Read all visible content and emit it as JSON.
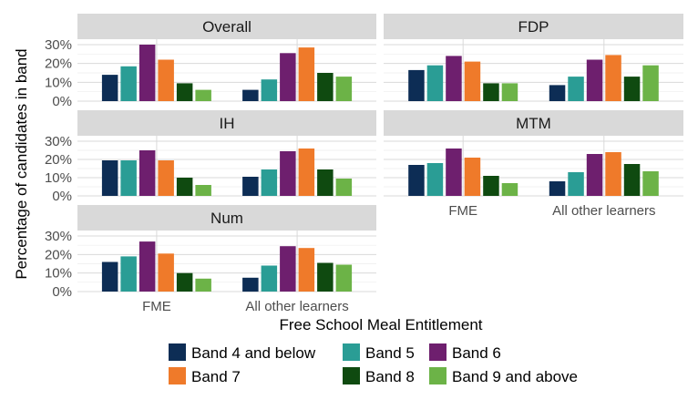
{
  "chart_data": {
    "type": "bar",
    "xlabel": "Free School Meal Entitlement",
    "ylabel": "Percentage of candidates in band",
    "categories": [
      "FME",
      "All other learners"
    ],
    "ylim": [
      0,
      30
    ],
    "yticks": [
      "0%",
      "10%",
      "20%",
      "30%"
    ],
    "grid": true,
    "legend_position": "bottom",
    "series": [
      {
        "name": "Band 4 and below",
        "color": "#0d2d55"
      },
      {
        "name": "Band 5",
        "color": "#2a9d95"
      },
      {
        "name": "Band 6",
        "color": "#6e1f6e"
      },
      {
        "name": "Band 7",
        "color": "#ef7a2a"
      },
      {
        "name": "Band 8",
        "color": "#0f4a10"
      },
      {
        "name": "Band 9 and above",
        "color": "#6cb347"
      }
    ],
    "panels": [
      {
        "title": "Overall",
        "values": {
          "FME": [
            14,
            18.5,
            30,
            22,
            9.5,
            6
          ],
          "All other learners": [
            6,
            11.5,
            25.5,
            28.5,
            15,
            13
          ]
        }
      },
      {
        "title": "FDP",
        "values": {
          "FME": [
            16.5,
            19,
            24,
            21,
            9.5,
            9.5
          ],
          "All other learners": [
            8.5,
            13,
            22,
            24.5,
            13,
            19
          ]
        }
      },
      {
        "title": "IH",
        "values": {
          "FME": [
            19.5,
            19.5,
            25,
            19.5,
            10,
            6
          ],
          "All other learners": [
            10.5,
            14.5,
            24.5,
            26,
            14.5,
            9.5
          ]
        }
      },
      {
        "title": "MTM",
        "values": {
          "FME": [
            17,
            18,
            26,
            21,
            11,
            7
          ],
          "All other learners": [
            8,
            13,
            23,
            24,
            17.5,
            13.5
          ]
        }
      },
      {
        "title": "Num",
        "values": {
          "FME": [
            16,
            19,
            27,
            20.5,
            10,
            7
          ],
          "All other learners": [
            7.5,
            14,
            24.5,
            23.5,
            15.5,
            14.5
          ]
        }
      }
    ]
  }
}
